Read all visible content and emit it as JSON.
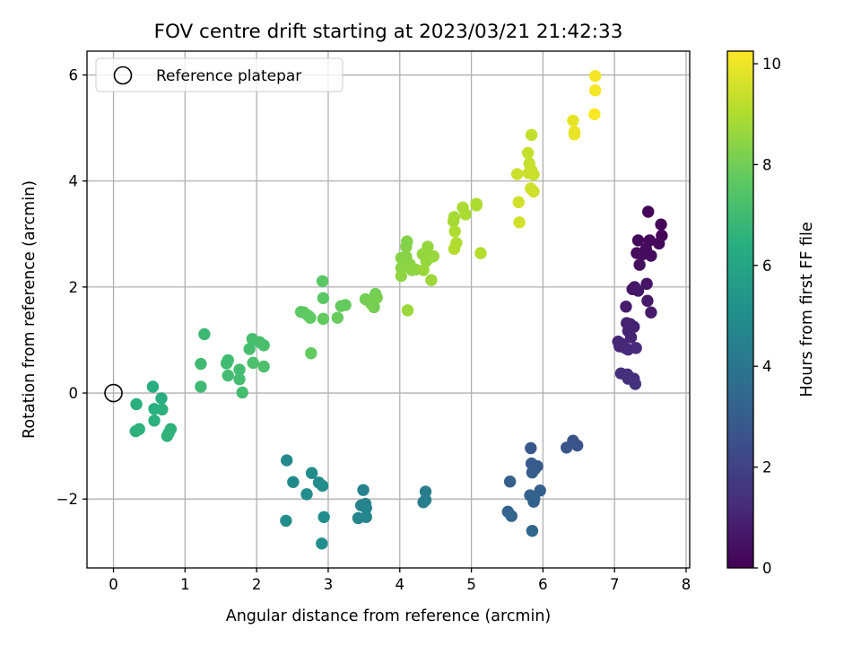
{
  "chart_data": {
    "type": "scatter",
    "title": "FOV centre drift starting at 2023/03/21 21:42:33",
    "xlabel": "Angular distance from reference (arcmin)",
    "ylabel": "Rotation from reference (arcmin)",
    "xlim": [
      -0.37,
      8.05
    ],
    "ylim": [
      -3.3,
      6.45
    ],
    "x_ticks": [
      0,
      1,
      2,
      3,
      4,
      5,
      6,
      7,
      8
    ],
    "y_ticks": [
      -2,
      0,
      2,
      4,
      6
    ],
    "x_tick_labels": [
      "0",
      "1",
      "2",
      "3",
      "4",
      "5",
      "6",
      "7",
      "8"
    ],
    "y_tick_labels": [
      "−2",
      "0",
      "2",
      "4",
      "6"
    ],
    "grid": true,
    "colormap": "viridis",
    "colorbar": {
      "label": "Hours from first FF file",
      "range": [
        0,
        10.25
      ],
      "ticks": [
        0,
        2,
        4,
        6,
        8,
        10
      ],
      "tick_labels": [
        "0",
        "2",
        "4",
        "6",
        "8",
        "10"
      ]
    },
    "legend": {
      "placement": "upper-left",
      "entries": [
        {
          "label": "Reference platepar",
          "marker": "open-circle"
        }
      ]
    },
    "reference_point": {
      "x": 0,
      "y": 0
    },
    "points": [
      {
        "x": 7.47,
        "y": 3.42,
        "t": 0.1
      },
      {
        "x": 7.65,
        "y": 3.18,
        "t": 0.1
      },
      {
        "x": 7.66,
        "y": 2.97,
        "t": 0.15
      },
      {
        "x": 7.33,
        "y": 2.88,
        "t": 0.2
      },
      {
        "x": 7.49,
        "y": 2.88,
        "t": 0.2
      },
      {
        "x": 7.62,
        "y": 2.82,
        "t": 0.25
      },
      {
        "x": 7.44,
        "y": 2.72,
        "t": 0.3
      },
      {
        "x": 7.31,
        "y": 2.64,
        "t": 0.3
      },
      {
        "x": 7.51,
        "y": 2.59,
        "t": 0.35
      },
      {
        "x": 7.4,
        "y": 2.62,
        "t": 0.35
      },
      {
        "x": 7.35,
        "y": 2.42,
        "t": 0.4
      },
      {
        "x": 7.45,
        "y": 2.06,
        "t": 0.6
      },
      {
        "x": 7.28,
        "y": 2.0,
        "t": 0.6
      },
      {
        "x": 7.33,
        "y": 1.93,
        "t": 0.65
      },
      {
        "x": 7.25,
        "y": 1.96,
        "t": 0.65
      },
      {
        "x": 7.46,
        "y": 1.74,
        "t": 0.7
      },
      {
        "x": 7.51,
        "y": 1.52,
        "t": 0.75
      },
      {
        "x": 7.16,
        "y": 1.63,
        "t": 0.75
      },
      {
        "x": 7.17,
        "y": 1.32,
        "t": 0.95
      },
      {
        "x": 7.22,
        "y": 1.3,
        "t": 0.95
      },
      {
        "x": 7.27,
        "y": 1.25,
        "t": 1.0
      },
      {
        "x": 7.19,
        "y": 1.17,
        "t": 1.0
      },
      {
        "x": 7.23,
        "y": 1.05,
        "t": 1.05
      },
      {
        "x": 7.05,
        "y": 0.97,
        "t": 1.1
      },
      {
        "x": 7.1,
        "y": 0.93,
        "t": 1.1
      },
      {
        "x": 7.07,
        "y": 0.88,
        "t": 1.15
      },
      {
        "x": 7.15,
        "y": 0.85,
        "t": 1.15
      },
      {
        "x": 7.3,
        "y": 0.85,
        "t": 1.2
      },
      {
        "x": 7.19,
        "y": 0.82,
        "t": 1.2
      },
      {
        "x": 7.09,
        "y": 0.37,
        "t": 1.35
      },
      {
        "x": 7.18,
        "y": 0.35,
        "t": 1.35
      },
      {
        "x": 7.19,
        "y": 0.27,
        "t": 1.4
      },
      {
        "x": 7.27,
        "y": 0.27,
        "t": 1.4
      },
      {
        "x": 7.29,
        "y": 0.17,
        "t": 1.45
      },
      {
        "x": 6.42,
        "y": -0.9,
        "t": 2.6
      },
      {
        "x": 6.48,
        "y": -0.99,
        "t": 2.65
      },
      {
        "x": 6.33,
        "y": -1.03,
        "t": 2.7
      },
      {
        "x": 5.83,
        "y": -1.04,
        "t": 2.8
      },
      {
        "x": 5.84,
        "y": -1.33,
        "t": 2.85
      },
      {
        "x": 5.92,
        "y": -1.38,
        "t": 2.9
      },
      {
        "x": 5.89,
        "y": -1.43,
        "t": 2.95
      },
      {
        "x": 5.85,
        "y": -1.5,
        "t": 3.0
      },
      {
        "x": 5.54,
        "y": -1.67,
        "t": 3.1
      },
      {
        "x": 5.96,
        "y": -1.84,
        "t": 3.15
      },
      {
        "x": 5.82,
        "y": -1.93,
        "t": 3.2
      },
      {
        "x": 5.88,
        "y": -2.0,
        "t": 3.2
      },
      {
        "x": 5.87,
        "y": -2.05,
        "t": 3.25
      },
      {
        "x": 5.51,
        "y": -2.24,
        "t": 3.3
      },
      {
        "x": 5.56,
        "y": -2.32,
        "t": 3.35
      },
      {
        "x": 5.85,
        "y": -2.6,
        "t": 3.4
      },
      {
        "x": 4.36,
        "y": -1.86,
        "t": 4.3
      },
      {
        "x": 4.36,
        "y": -2.02,
        "t": 4.35
      },
      {
        "x": 4.33,
        "y": -2.06,
        "t": 4.35
      },
      {
        "x": 3.49,
        "y": -1.83,
        "t": 4.5
      },
      {
        "x": 3.52,
        "y": -2.09,
        "t": 4.55
      },
      {
        "x": 3.46,
        "y": -2.12,
        "t": 4.55
      },
      {
        "x": 3.53,
        "y": -2.17,
        "t": 4.6
      },
      {
        "x": 3.42,
        "y": -2.36,
        "t": 4.65
      },
      {
        "x": 3.53,
        "y": -2.34,
        "t": 4.65
      },
      {
        "x": 2.42,
        "y": -1.27,
        "t": 4.8
      },
      {
        "x": 2.51,
        "y": -1.68,
        "t": 4.85
      },
      {
        "x": 2.77,
        "y": -1.51,
        "t": 4.9
      },
      {
        "x": 2.87,
        "y": -1.69,
        "t": 4.9
      },
      {
        "x": 2.92,
        "y": -1.75,
        "t": 4.95
      },
      {
        "x": 2.7,
        "y": -1.91,
        "t": 4.95
      },
      {
        "x": 2.41,
        "y": -2.41,
        "t": 5.0
      },
      {
        "x": 2.94,
        "y": -2.34,
        "t": 5.0
      },
      {
        "x": 2.91,
        "y": -2.84,
        "t": 5.05
      },
      {
        "x": 0.55,
        "y": 0.12,
        "t": 6.4
      },
      {
        "x": 0.67,
        "y": -0.1,
        "t": 6.4
      },
      {
        "x": 0.32,
        "y": -0.21,
        "t": 6.45
      },
      {
        "x": 0.57,
        "y": -0.3,
        "t": 6.45
      },
      {
        "x": 0.68,
        "y": -0.31,
        "t": 6.5
      },
      {
        "x": 0.57,
        "y": -0.52,
        "t": 6.5
      },
      {
        "x": 0.36,
        "y": -0.68,
        "t": 6.55
      },
      {
        "x": 0.31,
        "y": -0.72,
        "t": 6.55
      },
      {
        "x": 0.8,
        "y": -0.68,
        "t": 6.6
      },
      {
        "x": 0.77,
        "y": -0.76,
        "t": 6.6
      },
      {
        "x": 0.75,
        "y": -0.81,
        "t": 6.65
      },
      {
        "x": 1.27,
        "y": 1.11,
        "t": 6.9
      },
      {
        "x": 1.22,
        "y": 0.55,
        "t": 6.95
      },
      {
        "x": 1.22,
        "y": 0.12,
        "t": 6.95
      },
      {
        "x": 1.6,
        "y": 0.62,
        "t": 7.0
      },
      {
        "x": 1.58,
        "y": 0.56,
        "t": 7.0
      },
      {
        "x": 1.6,
        "y": 0.33,
        "t": 7.05
      },
      {
        "x": 1.76,
        "y": 0.44,
        "t": 7.05
      },
      {
        "x": 1.76,
        "y": 0.26,
        "t": 7.1
      },
      {
        "x": 1.8,
        "y": 0.01,
        "t": 7.1
      },
      {
        "x": 1.94,
        "y": 1.02,
        "t": 7.15
      },
      {
        "x": 1.9,
        "y": 0.83,
        "t": 7.15
      },
      {
        "x": 2.04,
        "y": 0.96,
        "t": 7.2
      },
      {
        "x": 2.1,
        "y": 0.9,
        "t": 7.2
      },
      {
        "x": 1.95,
        "y": 0.57,
        "t": 7.25
      },
      {
        "x": 2.1,
        "y": 0.5,
        "t": 7.25
      },
      {
        "x": 2.92,
        "y": 2.11,
        "t": 7.6
      },
      {
        "x": 2.93,
        "y": 1.79,
        "t": 7.6
      },
      {
        "x": 2.62,
        "y": 1.53,
        "t": 7.65
      },
      {
        "x": 2.66,
        "y": 1.52,
        "t": 7.65
      },
      {
        "x": 2.72,
        "y": 1.46,
        "t": 7.7
      },
      {
        "x": 2.75,
        "y": 1.42,
        "t": 7.7
      },
      {
        "x": 2.93,
        "y": 1.4,
        "t": 7.75
      },
      {
        "x": 2.76,
        "y": 0.75,
        "t": 7.75
      },
      {
        "x": 3.18,
        "y": 1.64,
        "t": 7.8
      },
      {
        "x": 3.24,
        "y": 1.66,
        "t": 7.8
      },
      {
        "x": 3.13,
        "y": 1.42,
        "t": 7.85
      },
      {
        "x": 3.52,
        "y": 1.77,
        "t": 8.0
      },
      {
        "x": 3.66,
        "y": 1.87,
        "t": 8.0
      },
      {
        "x": 3.58,
        "y": 1.72,
        "t": 8.05
      },
      {
        "x": 3.61,
        "y": 1.67,
        "t": 8.05
      },
      {
        "x": 3.64,
        "y": 1.62,
        "t": 8.1
      },
      {
        "x": 3.68,
        "y": 1.8,
        "t": 8.1
      },
      {
        "x": 4.1,
        "y": 2.86,
        "t": 8.3
      },
      {
        "x": 4.09,
        "y": 2.76,
        "t": 8.3
      },
      {
        "x": 4.02,
        "y": 2.55,
        "t": 8.35
      },
      {
        "x": 4.09,
        "y": 2.57,
        "t": 8.35
      },
      {
        "x": 4.06,
        "y": 2.46,
        "t": 8.4
      },
      {
        "x": 4.14,
        "y": 2.43,
        "t": 8.4
      },
      {
        "x": 4.02,
        "y": 2.36,
        "t": 8.45
      },
      {
        "x": 4.17,
        "y": 2.32,
        "t": 8.45
      },
      {
        "x": 4.02,
        "y": 2.21,
        "t": 8.5
      },
      {
        "x": 4.22,
        "y": 2.33,
        "t": 8.5
      },
      {
        "x": 4.32,
        "y": 2.62,
        "t": 8.55
      },
      {
        "x": 4.39,
        "y": 2.76,
        "t": 8.55
      },
      {
        "x": 4.37,
        "y": 2.49,
        "t": 8.6
      },
      {
        "x": 4.44,
        "y": 2.57,
        "t": 8.6
      },
      {
        "x": 4.47,
        "y": 2.58,
        "t": 8.65
      },
      {
        "x": 4.33,
        "y": 2.32,
        "t": 8.65
      },
      {
        "x": 4.44,
        "y": 2.13,
        "t": 8.7
      },
      {
        "x": 4.11,
        "y": 1.56,
        "t": 8.7
      },
      {
        "x": 4.75,
        "y": 3.24,
        "t": 8.85
      },
      {
        "x": 4.76,
        "y": 3.32,
        "t": 8.85
      },
      {
        "x": 4.88,
        "y": 3.5,
        "t": 8.9
      },
      {
        "x": 4.92,
        "y": 3.37,
        "t": 8.9
      },
      {
        "x": 5.07,
        "y": 3.54,
        "t": 8.95
      },
      {
        "x": 5.07,
        "y": 3.57,
        "t": 8.95
      },
      {
        "x": 4.77,
        "y": 3.05,
        "t": 9.0
      },
      {
        "x": 4.79,
        "y": 2.83,
        "t": 9.0
      },
      {
        "x": 4.76,
        "y": 2.72,
        "t": 9.05
      },
      {
        "x": 5.13,
        "y": 2.64,
        "t": 9.05
      },
      {
        "x": 5.84,
        "y": 4.87,
        "t": 9.3
      },
      {
        "x": 5.79,
        "y": 4.53,
        "t": 9.35
      },
      {
        "x": 5.81,
        "y": 4.33,
        "t": 9.35
      },
      {
        "x": 5.84,
        "y": 4.2,
        "t": 9.4
      },
      {
        "x": 5.87,
        "y": 4.12,
        "t": 9.4
      },
      {
        "x": 5.8,
        "y": 4.15,
        "t": 9.45
      },
      {
        "x": 5.64,
        "y": 4.13,
        "t": 9.45
      },
      {
        "x": 5.83,
        "y": 3.86,
        "t": 9.5
      },
      {
        "x": 5.87,
        "y": 3.8,
        "t": 9.5
      },
      {
        "x": 5.66,
        "y": 3.6,
        "t": 9.55
      },
      {
        "x": 5.67,
        "y": 3.22,
        "t": 9.55
      },
      {
        "x": 6.42,
        "y": 5.14,
        "t": 9.9
      },
      {
        "x": 6.44,
        "y": 4.93,
        "t": 9.95
      },
      {
        "x": 6.44,
        "y": 4.88,
        "t": 9.95
      },
      {
        "x": 6.73,
        "y": 5.98,
        "t": 10.1
      },
      {
        "x": 6.73,
        "y": 5.71,
        "t": 10.15
      },
      {
        "x": 6.72,
        "y": 5.26,
        "t": 10.2
      }
    ]
  }
}
